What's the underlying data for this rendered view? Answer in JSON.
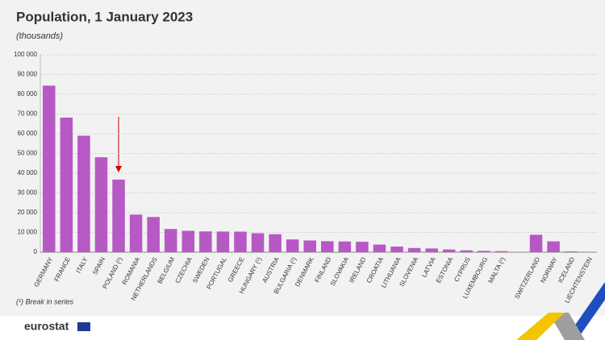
{
  "chart_data": {
    "type": "bar",
    "title": "Population, 1 January 2023",
    "subtitle": "(thousands)",
    "categories": [
      "GERMANY",
      "FRANCE",
      "ITALY",
      "SPAIN",
      "POLAND (¹)",
      "ROMANIA",
      "NETHERLANDS",
      "BELGIUM",
      "CZECHIA",
      "SWEDEN",
      "PORTUGAL",
      "GREECE",
      "HUNGARY (¹)",
      "AUSTRIA",
      "BULGARIA (¹)",
      "DENMARK",
      "FINLAND",
      "SLOVAKIA",
      "IRELAND",
      "CROATIA",
      "LITHUANIA",
      "SLOVENIA",
      "LATVIA",
      "ESTONIA",
      "CYPRUS",
      "LUXEMBOURG",
      "MALTA (¹)",
      null,
      "SWITZERLAND",
      "NORWAY",
      "ICELAND",
      "LIECHTENSTEIN"
    ],
    "values": [
      84359,
      68173,
      58997,
      48085,
      36754,
      19052,
      17811,
      11743,
      10828,
      10522,
      10467,
      10414,
      9600,
      9105,
      6448,
      5933,
      5564,
      5429,
      5271,
      3851,
      2858,
      2117,
      1883,
      1366,
      921,
      661,
      542,
      null,
      8812,
      5489,
      388,
      40
    ],
    "color": "#b659c4",
    "ylim": [
      0,
      100000
    ],
    "yticks": [
      0,
      {
        "value": 10000,
        "label": "10 000"
      },
      {
        "value": 20000,
        "label": "20 000"
      },
      {
        "value": 30000,
        "label": "30 000"
      },
      {
        "value": 40000,
        "label": "40 000"
      },
      {
        "value": 50000,
        "label": "50 000"
      },
      {
        "value": 60000,
        "label": "60 000"
      },
      {
        "value": 70000,
        "label": "70 000"
      },
      {
        "value": 80000,
        "label": "80 000"
      },
      {
        "value": 90000,
        "label": "90 000"
      },
      {
        "value": 100000,
        "label": "100 000"
      }
    ],
    "grid": true,
    "footnote": "(¹) Break in series"
  },
  "logo": "eurostat"
}
